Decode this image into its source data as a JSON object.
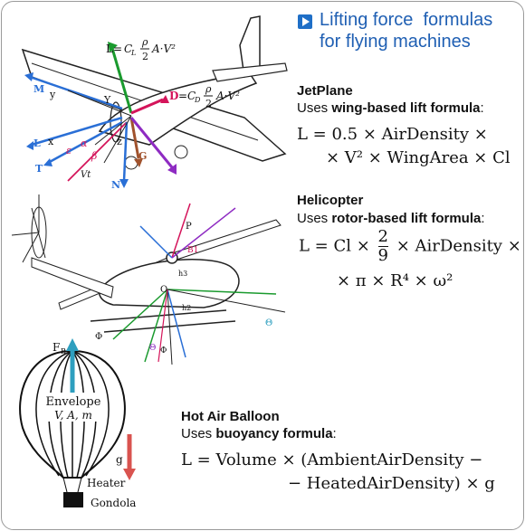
{
  "header": {
    "title": "Lifting force  formulas\nfor flying machines"
  },
  "jetplane": {
    "name": "JetPlane",
    "desc_prefix": "Uses ",
    "desc_bold": "wing-based lift formula",
    "desc_suffix": ":",
    "formula_line1": "L = 0.5 × AirDensity ×",
    "formula_line2": "× V² × WingArea × Cl",
    "diagram_labels": {
      "lift": "L = C",
      "lift_sub": "L",
      "lift_frac_num": "ρ",
      "lift_frac_den": "2",
      "lift_tail": "A·V²",
      "drag": "D",
      "drag_eq": "= C",
      "drag_sub": "D",
      "drag_frac_num": "ρ",
      "drag_frac_den": "2",
      "drag_tail": "A·V²",
      "m": "M",
      "y": "y",
      "yl": "Y",
      "l": "L",
      "x": "x",
      "t": "T",
      "alpha": "α",
      "eps": "ε",
      "beta": "β",
      "vt": "Vt",
      "z": "z",
      "g": "G",
      "n": "N"
    }
  },
  "helicopter": {
    "name": "Helicopter",
    "desc_prefix": "Uses ",
    "desc_bold": "rotor-based lift formula",
    "desc_suffix": ":",
    "formula_part1": "L = Cl ×",
    "frac_num": "2",
    "frac_den": "9",
    "formula_part2": "× AirDensity ×",
    "formula_line2": "× π × R⁴ × ω²",
    "diagram_labels": {
      "p": "P",
      "o": "O",
      "h3": "h3",
      "h2": "h2",
      "phi": "Φ",
      "theta": "Θ",
      "phi2": "Φ",
      "theta2": "Θ",
      "b1": "B1"
    }
  },
  "balloon": {
    "name": "Hot Air Balloon",
    "desc_prefix": "Uses ",
    "desc_bold": "buoyancy formula",
    "desc_suffix": ":",
    "formula_line1": "L = Volume × (AmbientAirDensity −",
    "formula_line2": "− HeatedAirDensity) × g",
    "diagram_labels": {
      "fb": "F",
      "fb_sub": "B",
      "envelope": "Envelope",
      "vars": "V, A, m",
      "g": "g",
      "heater": "Heater",
      "gondola": "Gondola"
    }
  },
  "colors": {
    "title": "#1f5fb3",
    "lift": "#1a9a2e",
    "drag": "#d4145a",
    "blue": "#2a6fd6",
    "brown": "#a0522d",
    "teal": "#2e9fbf",
    "red": "#d9534f"
  }
}
